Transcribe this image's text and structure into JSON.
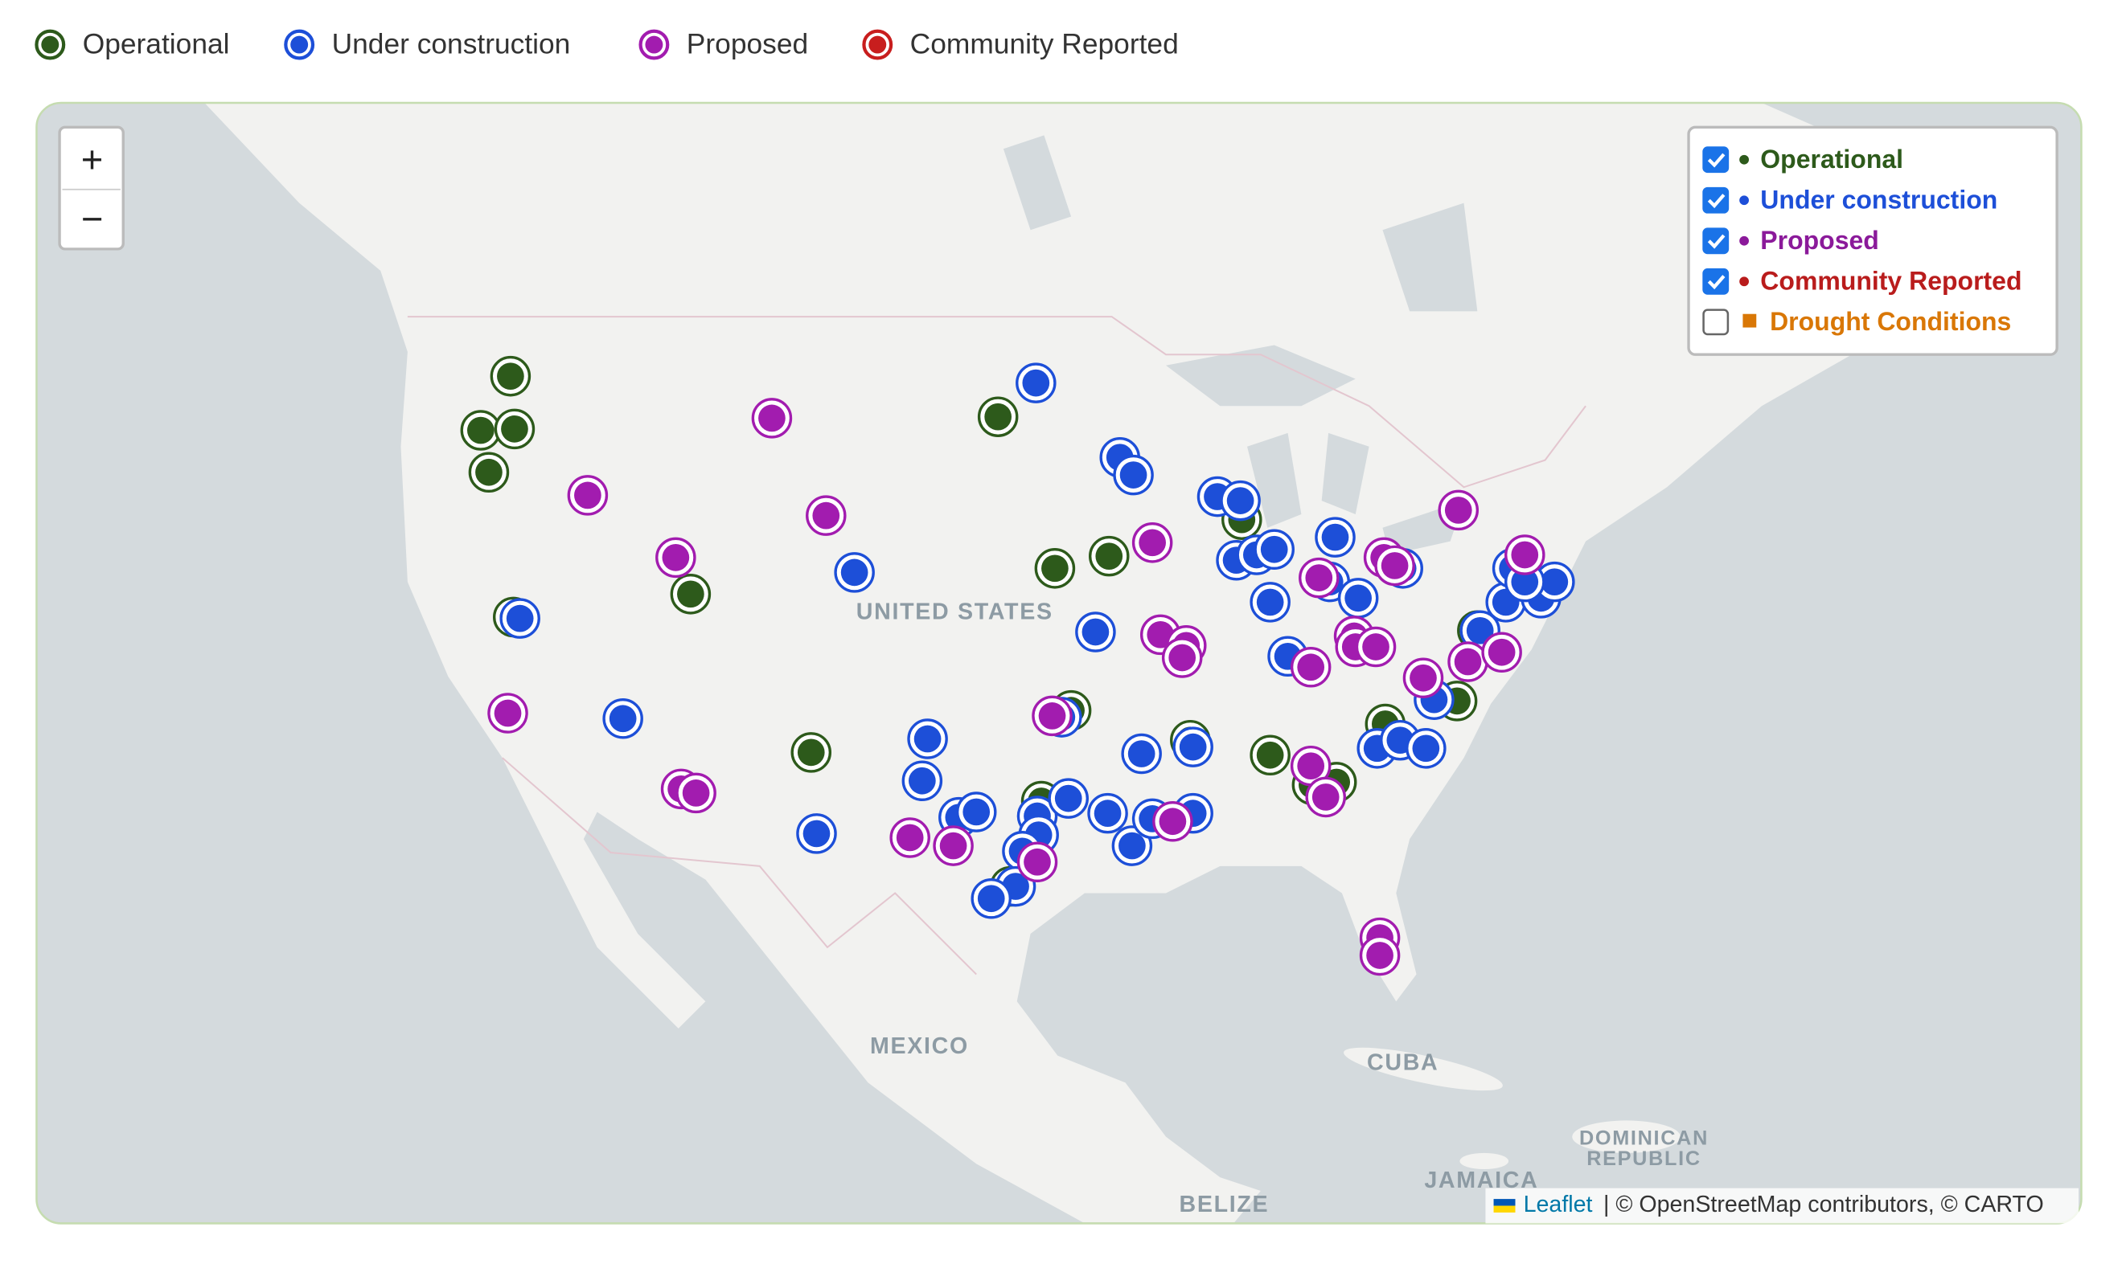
{
  "legend": [
    {
      "label": "Operational",
      "color": "#2d5a1b"
    },
    {
      "label": "Under construction",
      "color": "#1d4fd8"
    },
    {
      "label": "Proposed",
      "color": "#a21caf"
    },
    {
      "label": "Community Reported",
      "color": "#c81e1e"
    }
  ],
  "map": {
    "zoom_in": "+",
    "zoom_out": "−",
    "layers": [
      {
        "label": "Operational",
        "color": "#2d5a1b",
        "checked": true
      },
      {
        "label": "Under construction",
        "color": "#1d4fd8",
        "checked": true
      },
      {
        "label": "Proposed",
        "color": "#8b1a9a",
        "checked": true
      },
      {
        "label": "Community Reported",
        "color": "#b91c1c",
        "checked": true
      },
      {
        "label": "Drought Conditions",
        "color": "#d97706",
        "checked": false
      }
    ],
    "place_labels": [
      {
        "lines": [
          "UNITED STATES"
        ]
      },
      {
        "lines": [
          "MEXICO"
        ]
      },
      {
        "lines": [
          "CUBA"
        ]
      },
      {
        "lines": [
          "DOMINICAN",
          "REPUBLIC"
        ]
      },
      {
        "lines": [
          "JAMAICA"
        ]
      },
      {
        "lines": [
          "BELIZE"
        ]
      }
    ],
    "attribution": {
      "link": "Leaflet",
      "text": "| © OpenStreetMap contributors, © CARTO"
    }
  }
}
